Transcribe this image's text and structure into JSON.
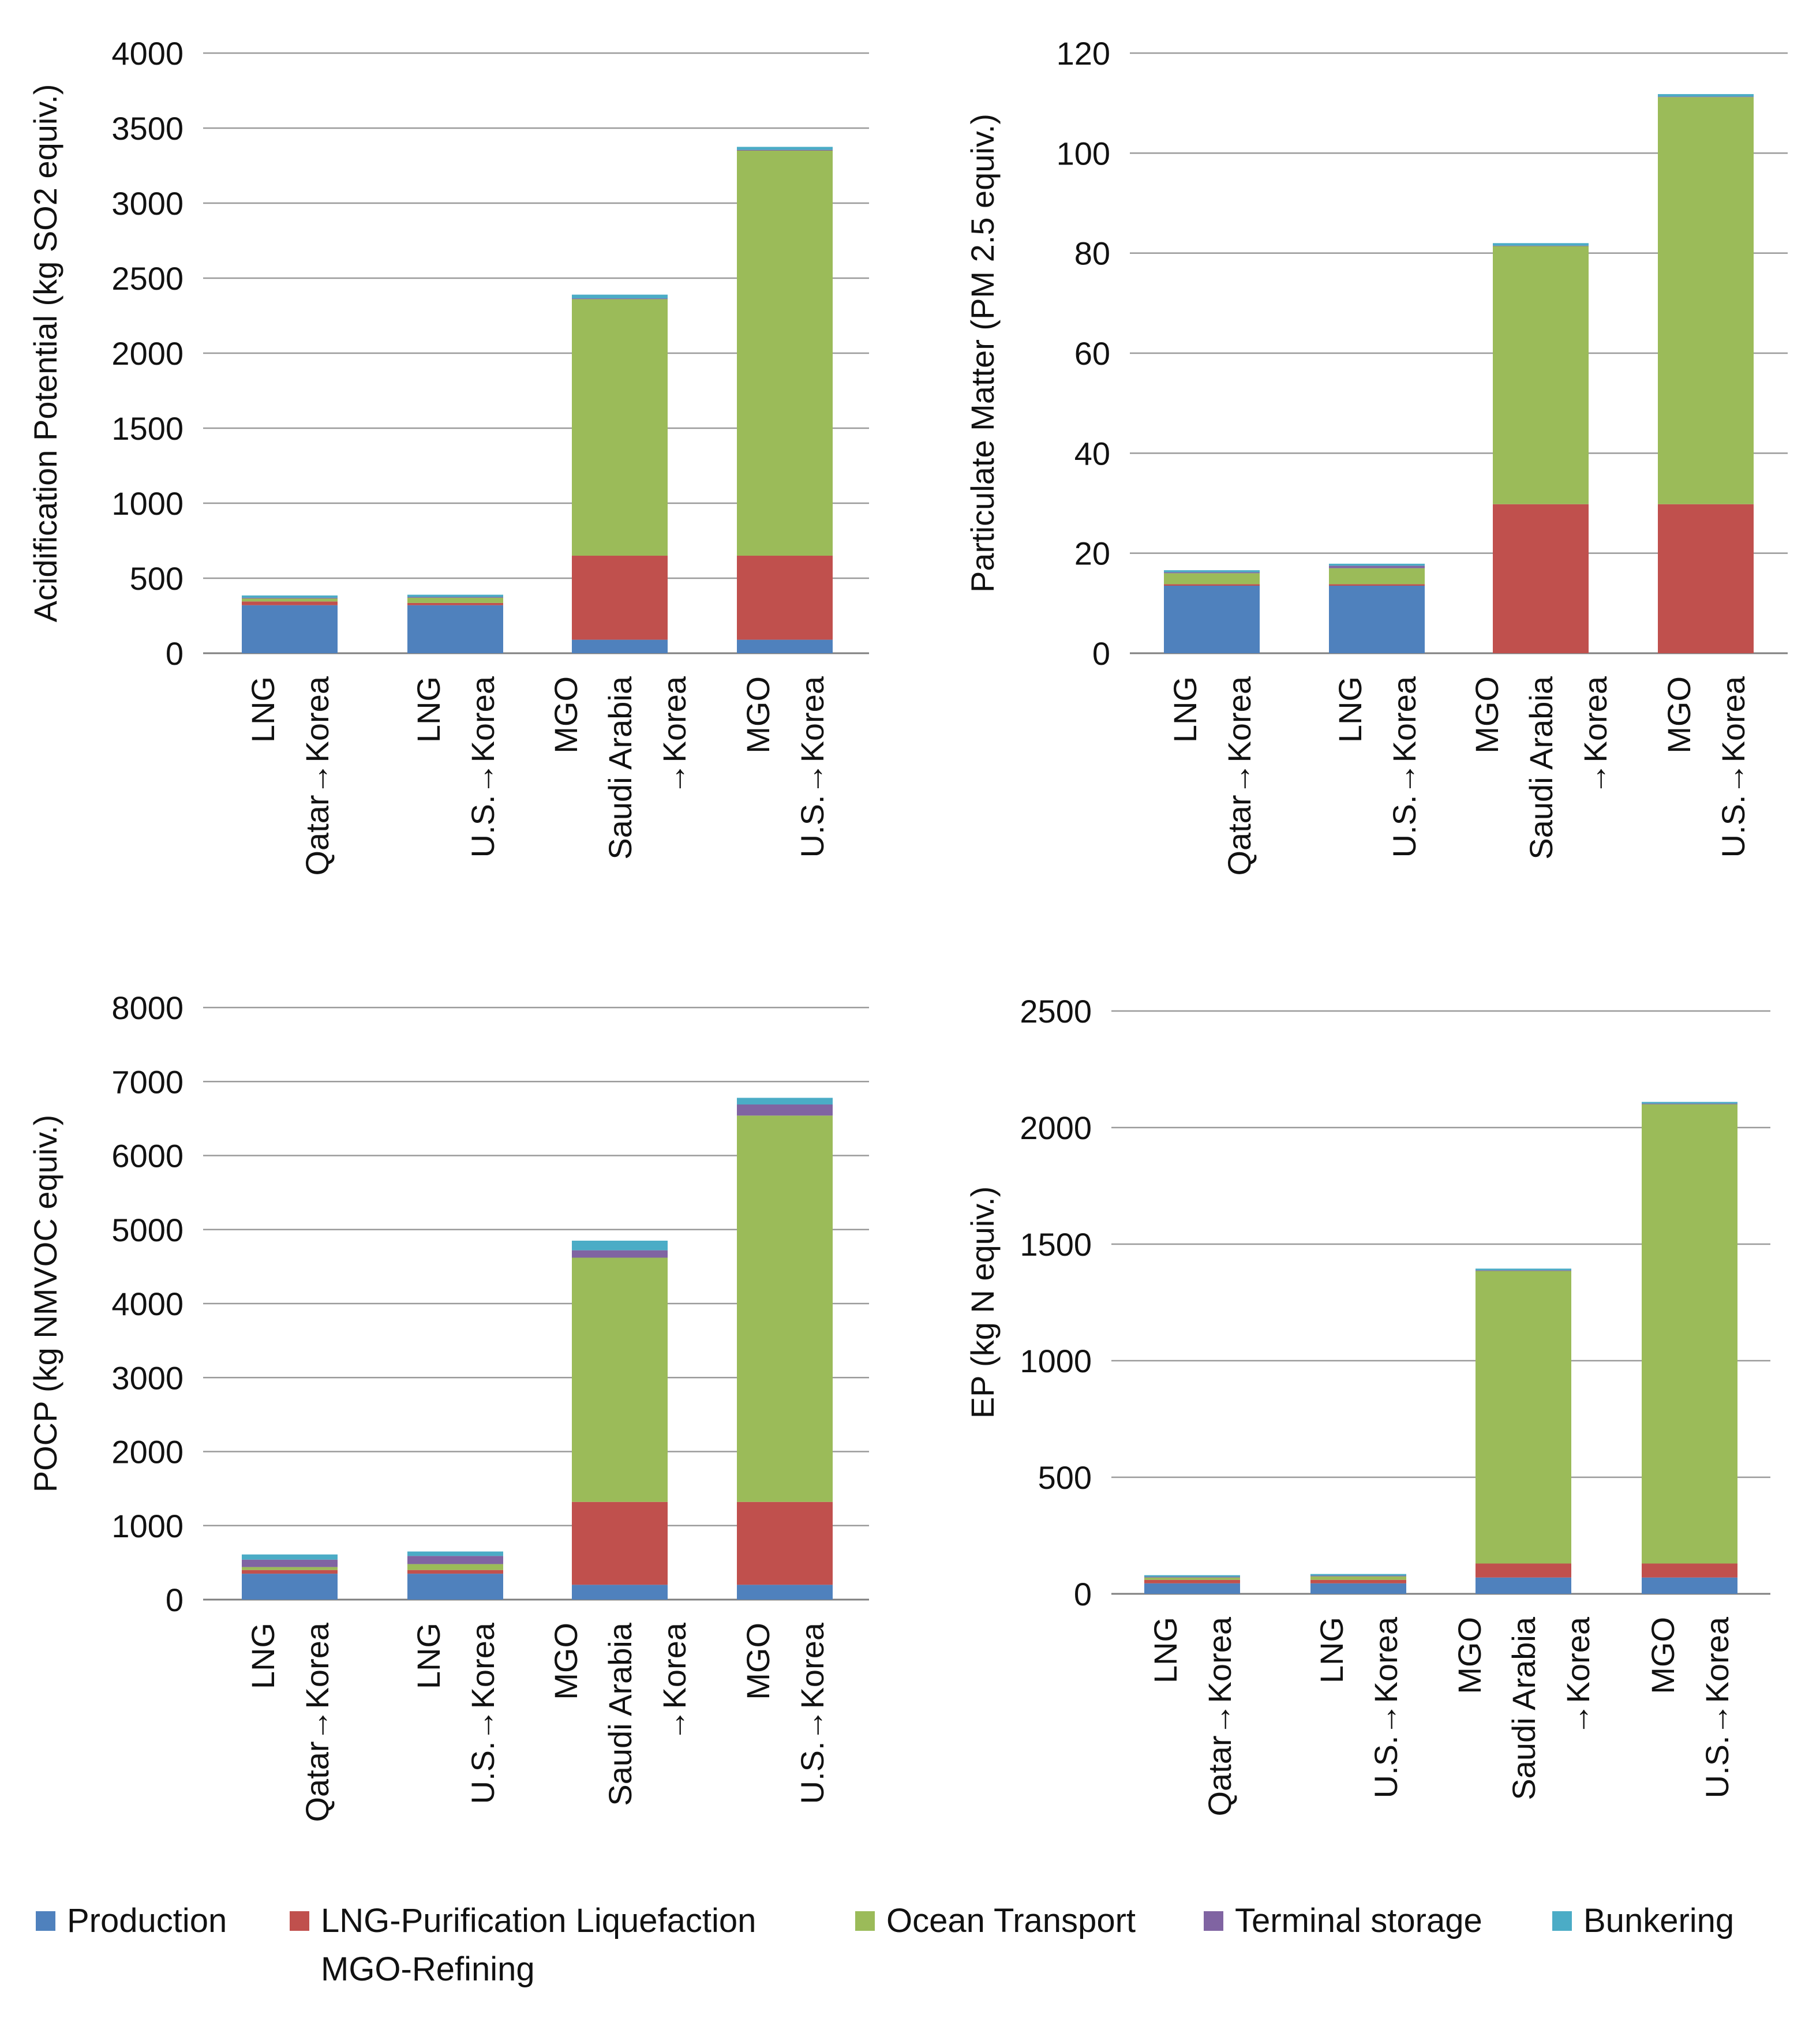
{
  "chart_data": [
    {
      "id": "acidification",
      "type": "bar",
      "stacked": true,
      "ylabel": "Acidification Potential (kg SO2 equiv.)",
      "ylim": [
        0,
        4000
      ],
      "yticks": [
        0,
        500,
        1000,
        1500,
        2000,
        2500,
        3000,
        3500,
        4000
      ],
      "categories": [
        [
          "LNG",
          "Qatar→Korea"
        ],
        [
          "LNG",
          "U.S.→Korea"
        ],
        [
          "MGO",
          "Saudi Arabia",
          "→Korea"
        ],
        [
          "MGO",
          "U.S.→Korea"
        ]
      ],
      "series": [
        {
          "name": "Production",
          "values": [
            320,
            320,
            90,
            90
          ]
        },
        {
          "name": "LNG-Purification Liquefaction MGO-Refining",
          "values": [
            25,
            15,
            560,
            560
          ]
        },
        {
          "name": "Ocean Transport",
          "values": [
            20,
            35,
            1710,
            2700
          ]
        },
        {
          "name": "Terminal storage",
          "values": [
            5,
            5,
            5,
            5
          ]
        },
        {
          "name": "Bunkering",
          "values": [
            15,
            15,
            25,
            20
          ]
        }
      ]
    },
    {
      "id": "particulate",
      "type": "bar",
      "stacked": true,
      "ylabel": "Particulate Matter (PM 2.5 equiv.)",
      "ylim": [
        0,
        120
      ],
      "yticks": [
        0,
        20,
        40,
        60,
        80,
        100,
        120
      ],
      "categories": [
        [
          "LNG",
          "Qatar→Korea"
        ],
        [
          "LNG",
          "U.S.→Korea"
        ],
        [
          "MGO",
          "Saudi Arabia",
          "→Korea"
        ],
        [
          "MGO",
          "U.S.→Korea"
        ]
      ],
      "series": [
        {
          "name": "Production",
          "values": [
            13.5,
            13.5,
            0,
            0
          ]
        },
        {
          "name": "LNG-Purification Liquefaction MGO-Refining",
          "values": [
            0.3,
            0.3,
            29.8,
            29.8
          ]
        },
        {
          "name": "Ocean Transport",
          "values": [
            2.2,
            3.2,
            51.6,
            81.4
          ]
        },
        {
          "name": "Terminal storage",
          "values": [
            0.2,
            0.5,
            0.1,
            0.1
          ]
        },
        {
          "name": "Bunkering",
          "values": [
            0.4,
            0.4,
            0.5,
            0.5
          ]
        }
      ]
    },
    {
      "id": "pocp",
      "type": "bar",
      "stacked": true,
      "ylabel": "POCP (kg NMVOC equiv.)",
      "ylim": [
        0,
        8000
      ],
      "yticks": [
        0,
        1000,
        2000,
        3000,
        4000,
        5000,
        6000,
        7000,
        8000
      ],
      "categories": [
        [
          "LNG",
          "Qatar→Korea"
        ],
        [
          "LNG",
          "U.S.→Korea"
        ],
        [
          "MGO",
          "Saudi Arabia",
          "→Korea"
        ],
        [
          "MGO",
          "U.S.→Korea"
        ]
      ],
      "series": [
        {
          "name": "Production",
          "values": [
            350,
            350,
            200,
            200
          ]
        },
        {
          "name": "LNG-Purification Liquefaction MGO-Refining",
          "values": [
            50,
            50,
            1120,
            1120
          ]
        },
        {
          "name": "Ocean Transport",
          "values": [
            40,
            80,
            3300,
            5220
          ]
        },
        {
          "name": "Terminal storage",
          "values": [
            100,
            110,
            100,
            150
          ]
        },
        {
          "name": "Bunkering",
          "values": [
            70,
            60,
            130,
            90
          ]
        }
      ]
    },
    {
      "id": "eutrophication",
      "type": "bar",
      "stacked": true,
      "ylabel": "EP (kg N equiv.)",
      "ylim": [
        0,
        2500
      ],
      "yticks": [
        0,
        500,
        1000,
        1500,
        2000,
        2500
      ],
      "categories": [
        [
          "LNG",
          "Qatar→Korea"
        ],
        [
          "LNG",
          "U.S.→Korea"
        ],
        [
          "MGO",
          "Saudi Arabia",
          "→Korea"
        ],
        [
          "MGO",
          "U.S.→Korea"
        ]
      ],
      "series": [
        {
          "name": "Production",
          "values": [
            45,
            45,
            70,
            70
          ]
        },
        {
          "name": "LNG-Purification Liquefaction MGO-Refining",
          "values": [
            15,
            15,
            60,
            60
          ]
        },
        {
          "name": "Ocean Transport",
          "values": [
            10,
            15,
            1255,
            1970
          ]
        },
        {
          "name": "Terminal storage",
          "values": [
            3,
            3,
            3,
            3
          ]
        },
        {
          "name": "Bunkering",
          "values": [
            7,
            7,
            7,
            7
          ]
        }
      ]
    }
  ],
  "legend": {
    "items": [
      {
        "label": "Production",
        "color": "#4f81bd"
      },
      {
        "label": "LNG-Purification Liquefaction",
        "label2": "MGO-Refining",
        "color": "#c0504d"
      },
      {
        "label": "Ocean Transport",
        "color": "#9bbb59"
      },
      {
        "label": "Terminal storage",
        "color": "#8064a2"
      },
      {
        "label": "Bunkering",
        "color": "#4bacc6"
      }
    ]
  }
}
